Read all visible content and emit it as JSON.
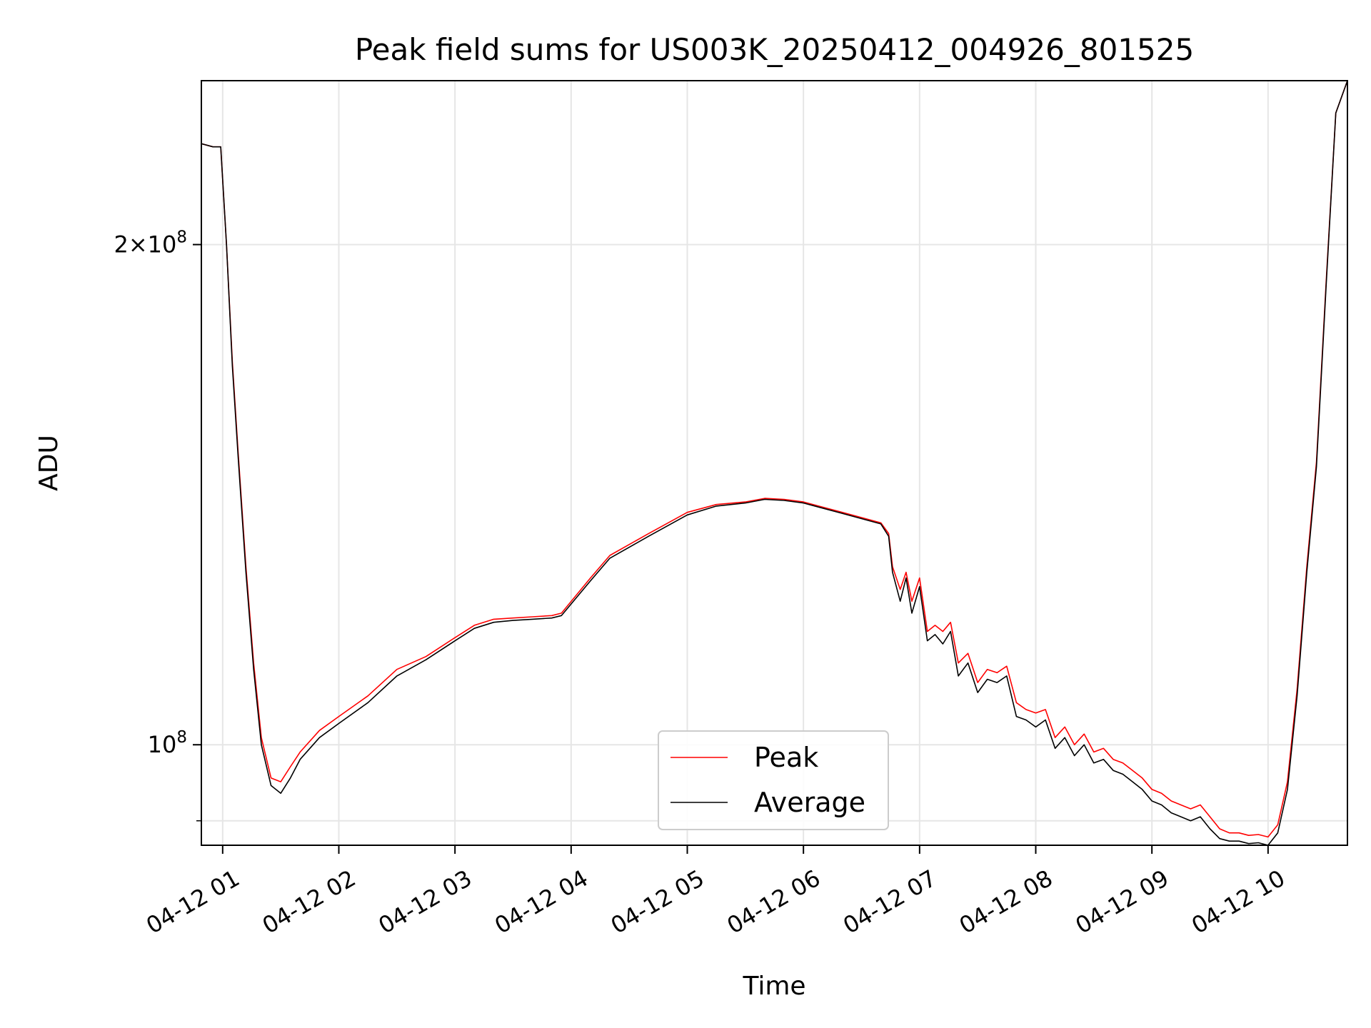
{
  "chart_data": {
    "type": "line",
    "title": "Peak field sums for US003K_20250412_004926_801525",
    "xlabel": "Time",
    "ylabel": "ADU",
    "yscale": "log",
    "xlim": [
      "2025-04-12 00:49",
      "2025-04-12 10:41"
    ],
    "ylim": [
      87000000,
      251000000
    ],
    "x_ticks": [
      {
        "value": "2025-04-12 01:00",
        "label": "04-12 01"
      },
      {
        "value": "2025-04-12 02:00",
        "label": "04-12 02"
      },
      {
        "value": "2025-04-12 03:00",
        "label": "04-12 03"
      },
      {
        "value": "2025-04-12 04:00",
        "label": "04-12 04"
      },
      {
        "value": "2025-04-12 05:00",
        "label": "04-12 05"
      },
      {
        "value": "2025-04-12 06:00",
        "label": "04-12 06"
      },
      {
        "value": "2025-04-12 07:00",
        "label": "04-12 07"
      },
      {
        "value": "2025-04-12 08:00",
        "label": "04-12 08"
      },
      {
        "value": "2025-04-12 09:00",
        "label": "04-12 09"
      },
      {
        "value": "2025-04-12 10:00",
        "label": "04-12 10"
      }
    ],
    "y_major_ticks": [
      {
        "value": 100000000,
        "base": "10",
        "exponent": "8",
        "mantissa": ""
      },
      {
        "value": 200000000,
        "base": "10",
        "exponent": "8",
        "mantissa": "2"
      }
    ],
    "y_minor_ticks": [
      90000000
    ],
    "grid": true,
    "legend_position": "lower-center",
    "series": [
      {
        "name": "Peak",
        "color": "#ff0000",
        "x": [
          "2025-04-12 00:49",
          "2025-04-12 00:55",
          "2025-04-12 00:59",
          "2025-04-12 01:02",
          "2025-04-12 01:05",
          "2025-04-12 01:08",
          "2025-04-12 01:12",
          "2025-04-12 01:16",
          "2025-04-12 01:20",
          "2025-04-12 01:25",
          "2025-04-12 01:30",
          "2025-04-12 01:35",
          "2025-04-12 01:40",
          "2025-04-12 01:50",
          "2025-04-12 02:00",
          "2025-04-12 02:15",
          "2025-04-12 02:30",
          "2025-04-12 02:45",
          "2025-04-12 03:00",
          "2025-04-12 03:10",
          "2025-04-12 03:20",
          "2025-04-12 03:30",
          "2025-04-12 03:40",
          "2025-04-12 03:50",
          "2025-04-12 03:55",
          "2025-04-12 04:10",
          "2025-04-12 04:20",
          "2025-04-12 04:40",
          "2025-04-12 05:00",
          "2025-04-12 05:15",
          "2025-04-12 05:30",
          "2025-04-12 05:40",
          "2025-04-12 05:50",
          "2025-04-12 06:00",
          "2025-04-12 06:20",
          "2025-04-12 06:40",
          "2025-04-12 06:44",
          "2025-04-12 06:46",
          "2025-04-12 06:50",
          "2025-04-12 06:53",
          "2025-04-12 06:56",
          "2025-04-12 07:00",
          "2025-04-12 07:04",
          "2025-04-12 07:08",
          "2025-04-12 07:12",
          "2025-04-12 07:16",
          "2025-04-12 07:20",
          "2025-04-12 07:25",
          "2025-04-12 07:30",
          "2025-04-12 07:35",
          "2025-04-12 07:40",
          "2025-04-12 07:45",
          "2025-04-12 07:50",
          "2025-04-12 07:55",
          "2025-04-12 08:00",
          "2025-04-12 08:05",
          "2025-04-12 08:10",
          "2025-04-12 08:15",
          "2025-04-12 08:20",
          "2025-04-12 08:25",
          "2025-04-12 08:30",
          "2025-04-12 08:35",
          "2025-04-12 08:40",
          "2025-04-12 08:45",
          "2025-04-12 08:50",
          "2025-04-12 08:55",
          "2025-04-12 09:00",
          "2025-04-12 09:05",
          "2025-04-12 09:10",
          "2025-04-12 09:15",
          "2025-04-12 09:20",
          "2025-04-12 09:25",
          "2025-04-12 09:30",
          "2025-04-12 09:35",
          "2025-04-12 09:40",
          "2025-04-12 09:45",
          "2025-04-12 09:50",
          "2025-04-12 09:55",
          "2025-04-12 10:00",
          "2025-04-12 10:05",
          "2025-04-12 10:10",
          "2025-04-12 10:15",
          "2025-04-12 10:20",
          "2025-04-12 10:25",
          "2025-04-12 10:30",
          "2025-04-12 10:35",
          "2025-04-12 10:41"
        ],
        "values": [
          230000000,
          229000000,
          229000000,
          200000000,
          170000000,
          150000000,
          128000000,
          112000000,
          101000000,
          95500000,
          95000000,
          97000000,
          99000000,
          102000000,
          104000000,
          107000000,
          111000000,
          113000000,
          116000000,
          118000000,
          119000000,
          119200000,
          119400000,
          119600000,
          120000000,
          126000000,
          130000000,
          134000000,
          138000000,
          139500000,
          140000000,
          140700000,
          140500000,
          140000000,
          138000000,
          136000000,
          134000000,
          128000000,
          124000000,
          127000000,
          122000000,
          126000000,
          117000000,
          118000000,
          117000000,
          118500000,
          112000000,
          113500000,
          109000000,
          111000000,
          110500000,
          111500000,
          106000000,
          105000000,
          104500000,
          105000000,
          101000000,
          102500000,
          100000000,
          101500000,
          99000000,
          99500000,
          98000000,
          97500000,
          96500000,
          95500000,
          94000000,
          93500000,
          92500000,
          92000000,
          91500000,
          92000000,
          90500000,
          89000000,
          88500000,
          88500000,
          88200000,
          88300000,
          88000000,
          89500000,
          95000000,
          108000000,
          128000000,
          148000000,
          190000000,
          240000000,
          251000000
        ]
      },
      {
        "name": "Average",
        "color": "#000000",
        "x": [
          "2025-04-12 00:49",
          "2025-04-12 00:55",
          "2025-04-12 00:59",
          "2025-04-12 01:02",
          "2025-04-12 01:05",
          "2025-04-12 01:08",
          "2025-04-12 01:12",
          "2025-04-12 01:16",
          "2025-04-12 01:20",
          "2025-04-12 01:25",
          "2025-04-12 01:30",
          "2025-04-12 01:35",
          "2025-04-12 01:40",
          "2025-04-12 01:50",
          "2025-04-12 02:00",
          "2025-04-12 02:15",
          "2025-04-12 02:30",
          "2025-04-12 02:45",
          "2025-04-12 03:00",
          "2025-04-12 03:10",
          "2025-04-12 03:20",
          "2025-04-12 03:30",
          "2025-04-12 03:40",
          "2025-04-12 03:50",
          "2025-04-12 03:55",
          "2025-04-12 04:10",
          "2025-04-12 04:20",
          "2025-04-12 04:40",
          "2025-04-12 05:00",
          "2025-04-12 05:15",
          "2025-04-12 05:30",
          "2025-04-12 05:40",
          "2025-04-12 05:50",
          "2025-04-12 06:00",
          "2025-04-12 06:20",
          "2025-04-12 06:40",
          "2025-04-12 06:44",
          "2025-04-12 06:46",
          "2025-04-12 06:50",
          "2025-04-12 06:53",
          "2025-04-12 06:56",
          "2025-04-12 07:00",
          "2025-04-12 07:04",
          "2025-04-12 07:08",
          "2025-04-12 07:12",
          "2025-04-12 07:16",
          "2025-04-12 07:20",
          "2025-04-12 07:25",
          "2025-04-12 07:30",
          "2025-04-12 07:35",
          "2025-04-12 07:40",
          "2025-04-12 07:45",
          "2025-04-12 07:50",
          "2025-04-12 07:55",
          "2025-04-12 08:00",
          "2025-04-12 08:05",
          "2025-04-12 08:10",
          "2025-04-12 08:15",
          "2025-04-12 08:20",
          "2025-04-12 08:25",
          "2025-04-12 08:30",
          "2025-04-12 08:35",
          "2025-04-12 08:40",
          "2025-04-12 08:45",
          "2025-04-12 08:50",
          "2025-04-12 08:55",
          "2025-04-12 09:00",
          "2025-04-12 09:05",
          "2025-04-12 09:10",
          "2025-04-12 09:15",
          "2025-04-12 09:20",
          "2025-04-12 09:25",
          "2025-04-12 09:30",
          "2025-04-12 09:35",
          "2025-04-12 09:40",
          "2025-04-12 09:45",
          "2025-04-12 09:50",
          "2025-04-12 09:55",
          "2025-04-12 10:00",
          "2025-04-12 10:05",
          "2025-04-12 10:10",
          "2025-04-12 10:15",
          "2025-04-12 10:20",
          "2025-04-12 10:25",
          "2025-04-12 10:30",
          "2025-04-12 10:35",
          "2025-04-12 10:41"
        ],
        "values": [
          230000000,
          229000000,
          229000000,
          200000000,
          169000000,
          149000000,
          127000000,
          111000000,
          100000000,
          94500000,
          93500000,
          95500000,
          98000000,
          101000000,
          103000000,
          106000000,
          110000000,
          112500000,
          115500000,
          117500000,
          118500000,
          118800000,
          119000000,
          119200000,
          119600000,
          125500000,
          129500000,
          133500000,
          137500000,
          139200000,
          139800000,
          140500000,
          140300000,
          139800000,
          137800000,
          135800000,
          133500000,
          127000000,
          122000000,
          126000000,
          120000000,
          124500000,
          115500000,
          116500000,
          115000000,
          117000000,
          110000000,
          112000000,
          107500000,
          109500000,
          109000000,
          110000000,
          104000000,
          103500000,
          102500000,
          103500000,
          99500000,
          101000000,
          98500000,
          100000000,
          97500000,
          98000000,
          96500000,
          96000000,
          95000000,
          94000000,
          92500000,
          92000000,
          91000000,
          90500000,
          90000000,
          90500000,
          89000000,
          87800000,
          87500000,
          87500000,
          87200000,
          87300000,
          87000000,
          88500000,
          94000000,
          107000000,
          127000000,
          147000000,
          189000000,
          240000000,
          251000000
        ]
      }
    ]
  }
}
